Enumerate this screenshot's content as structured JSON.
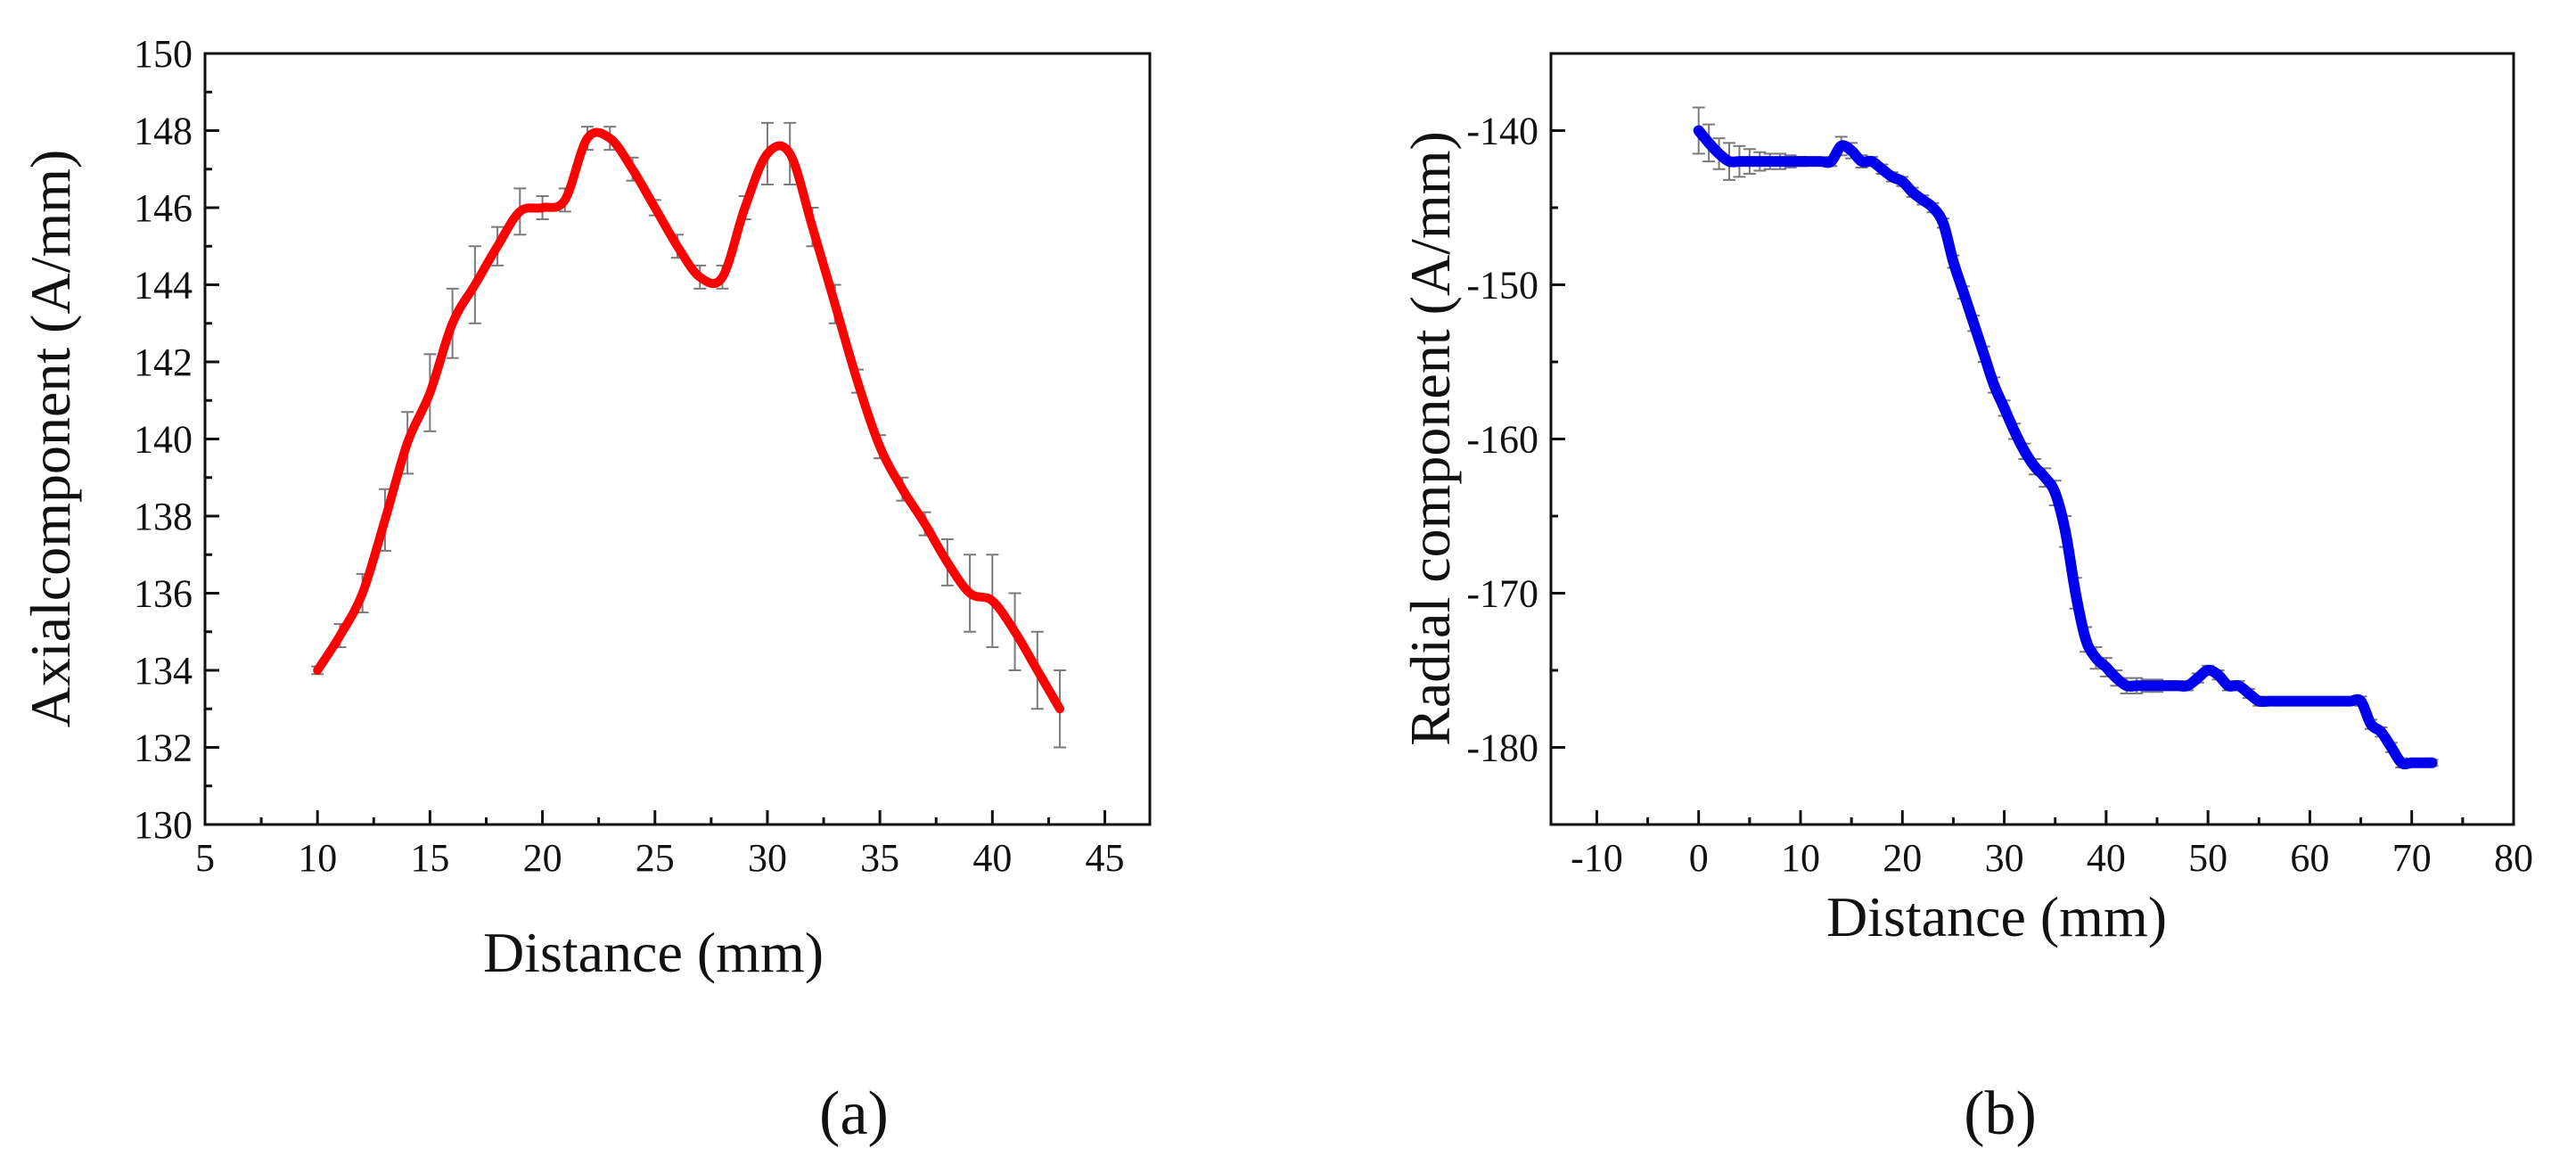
{
  "chart_data": [
    {
      "panel": "(a)",
      "type": "line",
      "title": "",
      "xlabel": "Distance (mm)",
      "ylabel": "Axialcomponent  (A/mm)",
      "xlim": [
        5,
        47
      ],
      "ylim": [
        130,
        150
      ],
      "xticks": [
        5,
        10,
        15,
        20,
        25,
        30,
        35,
        40,
        45
      ],
      "yticks": [
        130,
        132,
        134,
        136,
        138,
        140,
        142,
        144,
        146,
        148,
        150
      ],
      "xtick_labels": [
        "5",
        "10",
        "15",
        "20",
        "25",
        "30",
        "35",
        "40",
        "45"
      ],
      "ytick_labels": [
        "130",
        "132",
        "134",
        "136",
        "138",
        "140",
        "142",
        "144",
        "146",
        "148",
        "150"
      ],
      "color": "#ff0000",
      "series": [
        {
          "name": "Axial component",
          "x": [
            10,
            11,
            12,
            13,
            14,
            15,
            16,
            17,
            18,
            19,
            20,
            21,
            22,
            23,
            24,
            25,
            26,
            27,
            28,
            29,
            30,
            31,
            32,
            33,
            34,
            35,
            36,
            37,
            38,
            39,
            40,
            41,
            42,
            43
          ],
          "values": [
            134.0,
            134.9,
            136.0,
            137.9,
            139.9,
            141.2,
            143.0,
            144.0,
            145.0,
            145.9,
            146.0,
            146.2,
            147.8,
            147.8,
            147.0,
            146.0,
            145.0,
            144.2,
            144.2,
            146.0,
            147.4,
            147.4,
            145.5,
            143.5,
            141.5,
            139.8,
            138.7,
            137.8,
            136.8,
            136.0,
            135.8,
            135.0,
            134.0,
            133.0
          ],
          "error": [
            0.1,
            0.3,
            0.5,
            0.8,
            0.8,
            1.0,
            0.9,
            1.0,
            0.5,
            0.6,
            0.3,
            0.3,
            0.3,
            0.3,
            0.3,
            0.2,
            0.3,
            0.3,
            0.3,
            0.3,
            0.8,
            0.8,
            0.5,
            0.5,
            0.3,
            0.3,
            0.3,
            0.3,
            0.6,
            1.0,
            1.2,
            1.0,
            1.0,
            1.0
          ]
        }
      ]
    },
    {
      "panel": "(b)",
      "type": "line",
      "title": "",
      "xlabel": "Distance (mm)",
      "ylabel": "Radial component (A/mm)",
      "xlim": [
        -14.5,
        80
      ],
      "ylim": [
        -185,
        -135
      ],
      "xticks": [
        -10,
        0,
        10,
        20,
        30,
        40,
        50,
        60,
        70,
        80
      ],
      "yticks": [
        -140,
        -150,
        -160,
        -170,
        -180
      ],
      "xtick_labels": [
        "-10",
        "0",
        "10",
        "20",
        "30",
        "40",
        "50",
        "60",
        "70",
        "80"
      ],
      "ytick_labels": [
        "-140",
        "-150",
        "-160",
        "-170",
        "-180"
      ],
      "color": "#0000ee",
      "series": [
        {
          "name": "Radial component",
          "x": [
            0,
            1,
            2,
            3,
            4,
            5,
            6,
            7,
            8,
            9,
            10,
            11,
            12,
            13,
            14,
            15,
            16,
            17,
            18,
            19,
            20,
            21,
            22,
            23,
            24,
            25,
            26,
            27,
            28,
            29,
            30,
            31,
            32,
            33,
            34,
            35,
            36,
            37,
            38,
            39,
            40,
            41,
            42,
            43,
            44,
            45,
            46,
            47,
            48,
            49,
            50,
            51,
            52,
            53,
            54,
            55,
            56,
            57,
            58,
            59,
            60,
            61,
            62,
            63,
            64,
            65,
            66,
            67,
            68,
            69,
            70,
            71,
            72
          ],
          "values": [
            -140.0,
            -140.8,
            -141.5,
            -142.0,
            -142.0,
            -142.0,
            -142.0,
            -142.0,
            -142.0,
            -142.0,
            -142.0,
            -142.0,
            -142.0,
            -142.0,
            -141.0,
            -141.3,
            -142.0,
            -142.0,
            -142.5,
            -143.0,
            -143.3,
            -144.0,
            -144.5,
            -145.0,
            -146.0,
            -148.5,
            -150.5,
            -152.5,
            -154.5,
            -156.5,
            -158.0,
            -159.5,
            -160.8,
            -161.8,
            -162.5,
            -163.5,
            -166.0,
            -170.0,
            -173.0,
            -174.2,
            -174.8,
            -175.5,
            -176.0,
            -176.0,
            -176.0,
            -176.0,
            -176.0,
            -176.0,
            -176.0,
            -175.5,
            -175.0,
            -175.3,
            -176.0,
            -176.0,
            -176.5,
            -177.0,
            -177.0,
            -177.0,
            -177.0,
            -177.0,
            -177.0,
            -177.0,
            -177.0,
            -177.0,
            -177.0,
            -177.0,
            -178.5,
            -179.0,
            -180.0,
            -181.0,
            -181.0,
            -181.0,
            -181.0
          ],
          "error": [
            1.5,
            1.2,
            1.0,
            1.2,
            1.0,
            0.8,
            0.6,
            0.5,
            0.5,
            0.4,
            0.3,
            0.2,
            0.2,
            0.3,
            0.6,
            0.5,
            0.4,
            0.3,
            0.3,
            0.3,
            0.3,
            0.3,
            0.3,
            0.3,
            0.3,
            0.4,
            0.4,
            0.5,
            0.5,
            0.5,
            0.5,
            0.5,
            0.5,
            0.5,
            0.6,
            0.8,
            1.0,
            1.0,
            0.8,
            0.7,
            0.6,
            0.5,
            0.5,
            0.5,
            0.4,
            0.4,
            0.3,
            0.3,
            0.3,
            0.3,
            0.3,
            0.3,
            0.3,
            0.3,
            0.3,
            0.3,
            0.2,
            0.2,
            0.2,
            0.2,
            0.2,
            0.2,
            0.2,
            0.2,
            0.2,
            0.3,
            0.3,
            0.3,
            0.3,
            0.3,
            0.2,
            0.2,
            0.2
          ]
        }
      ]
    }
  ]
}
